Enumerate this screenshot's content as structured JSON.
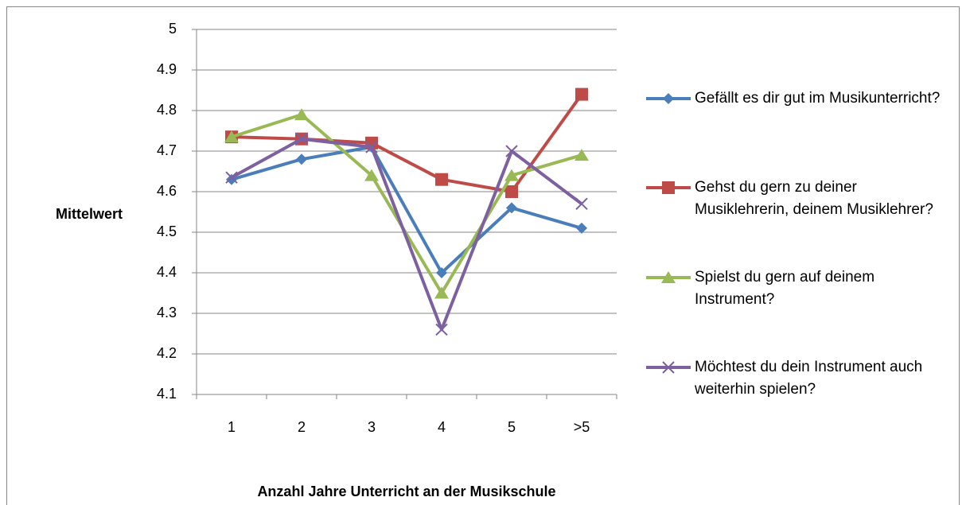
{
  "chart_data": {
    "type": "line",
    "xlabel": "Anzahl Jahre Unterricht an der Musikschule",
    "ylabel": "Mittelwert",
    "categories": [
      "1",
      "2",
      "3",
      "4",
      "5",
      ">5"
    ],
    "series": [
      {
        "name": "Gefällt es dir gut im Musikunterricht?",
        "color": "#4a7ebb",
        "marker": "diamond",
        "values": [
          4.63,
          4.68,
          4.71,
          4.4,
          4.56,
          4.51
        ]
      },
      {
        "name": "Gehst du gern zu deiner Musiklehrerin, deinem Musiklehrer?",
        "color": "#be4b48",
        "marker": "square",
        "values": [
          4.735,
          4.73,
          4.72,
          4.63,
          4.6,
          4.84
        ]
      },
      {
        "name": "Spielst du gern auf deinem Instrument?",
        "color": "#98b954",
        "marker": "triangle",
        "values": [
          4.735,
          4.79,
          4.64,
          4.35,
          4.64,
          4.69
        ]
      },
      {
        "name": "Möchtest du dein Instrument auch weiterhin spielen?",
        "color": "#7d60a0",
        "marker": "x",
        "values": [
          4.635,
          4.73,
          4.71,
          4.26,
          4.7,
          4.57
        ]
      }
    ],
    "ylim": [
      4.1,
      5
    ],
    "yticks": [
      4.1,
      4.2,
      4.3,
      4.4,
      4.5,
      4.6,
      4.7,
      4.8,
      4.9,
      5
    ],
    "grid": true,
    "legend": "right"
  }
}
